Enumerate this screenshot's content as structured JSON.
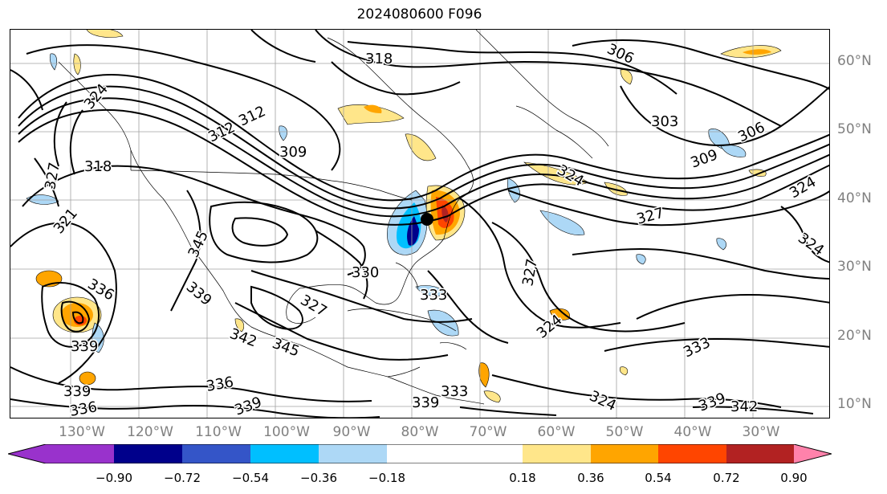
{
  "title": "2024080600 F096",
  "lat_labels": [
    "60°N",
    "50°N",
    "40°N",
    "30°N",
    "20°N",
    "10°N"
  ],
  "lon_labels": [
    "130°W",
    "120°W",
    "110°W",
    "100°W",
    "90°W",
    "80°W",
    "70°W",
    "60°W",
    "50°W",
    "40°W",
    "30°W"
  ],
  "colorbar": {
    "ticks": [
      "−0.90",
      "−0.72",
      "−0.54",
      "−0.36",
      "−0.18",
      "0.18",
      "0.36",
      "0.54",
      "0.72",
      "0.90"
    ],
    "colors": [
      "#9932cc",
      "#8a2be2",
      "#00008b",
      "#3455c8",
      "#00bfff",
      "#add8f6",
      "#ffffff",
      "#ffe68a",
      "#ffa500",
      "#ff4500",
      "#b22222",
      "#ff82ab"
    ]
  },
  "contour_labels": [
    "318",
    "306",
    "303",
    "306",
    "309",
    "324",
    "324",
    "327",
    "324",
    "312",
    "312",
    "309",
    "318",
    "327",
    "321",
    "324",
    "345",
    "339",
    "336",
    "339",
    "327",
    "330",
    "333",
    "345",
    "342",
    "339",
    "336",
    "339",
    "336",
    "333",
    "333",
    "339",
    "342",
    "327",
    "324",
    "339",
    "324"
  ],
  "colors": {
    "contour": "#000000",
    "grid": "#a0a0a0",
    "coast": "#000000",
    "pos_low": "#ffe68a",
    "pos_mid": "#ffa500",
    "pos_high": "#ff4500",
    "pos_max": "#b22222",
    "neg_low": "#add8f6",
    "neg_mid": "#00bfff",
    "neg_high": "#3455c8",
    "neg_max": "#00008b"
  }
}
